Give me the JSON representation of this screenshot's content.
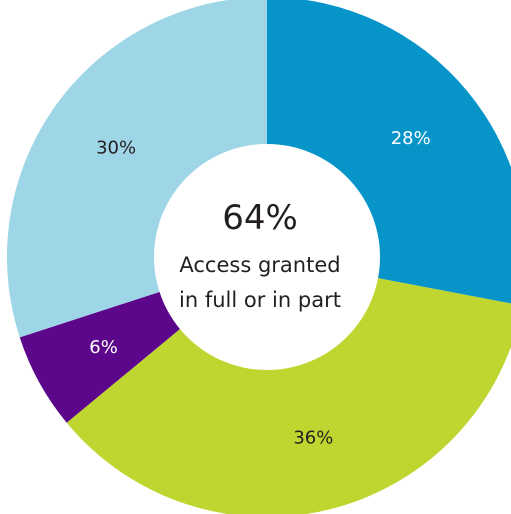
{
  "chart_data": {
    "type": "pie",
    "donut": true,
    "center_value": "64%",
    "center_caption": [
      "Access granted",
      "in full or in part"
    ],
    "slices": [
      {
        "label": "28%",
        "value": 28,
        "color": "#0795c9",
        "label_color": "#ffffff"
      },
      {
        "label": "36%",
        "value": 36,
        "color": "#bfd630",
        "label_color": "#231f20"
      },
      {
        "label": "6%",
        "value": 6,
        "color": "#5c068c",
        "label_color": "#ffffff"
      },
      {
        "label": "30%",
        "value": 30,
        "color": "#9fd6e7",
        "label_color": "#231f20"
      }
    ]
  }
}
